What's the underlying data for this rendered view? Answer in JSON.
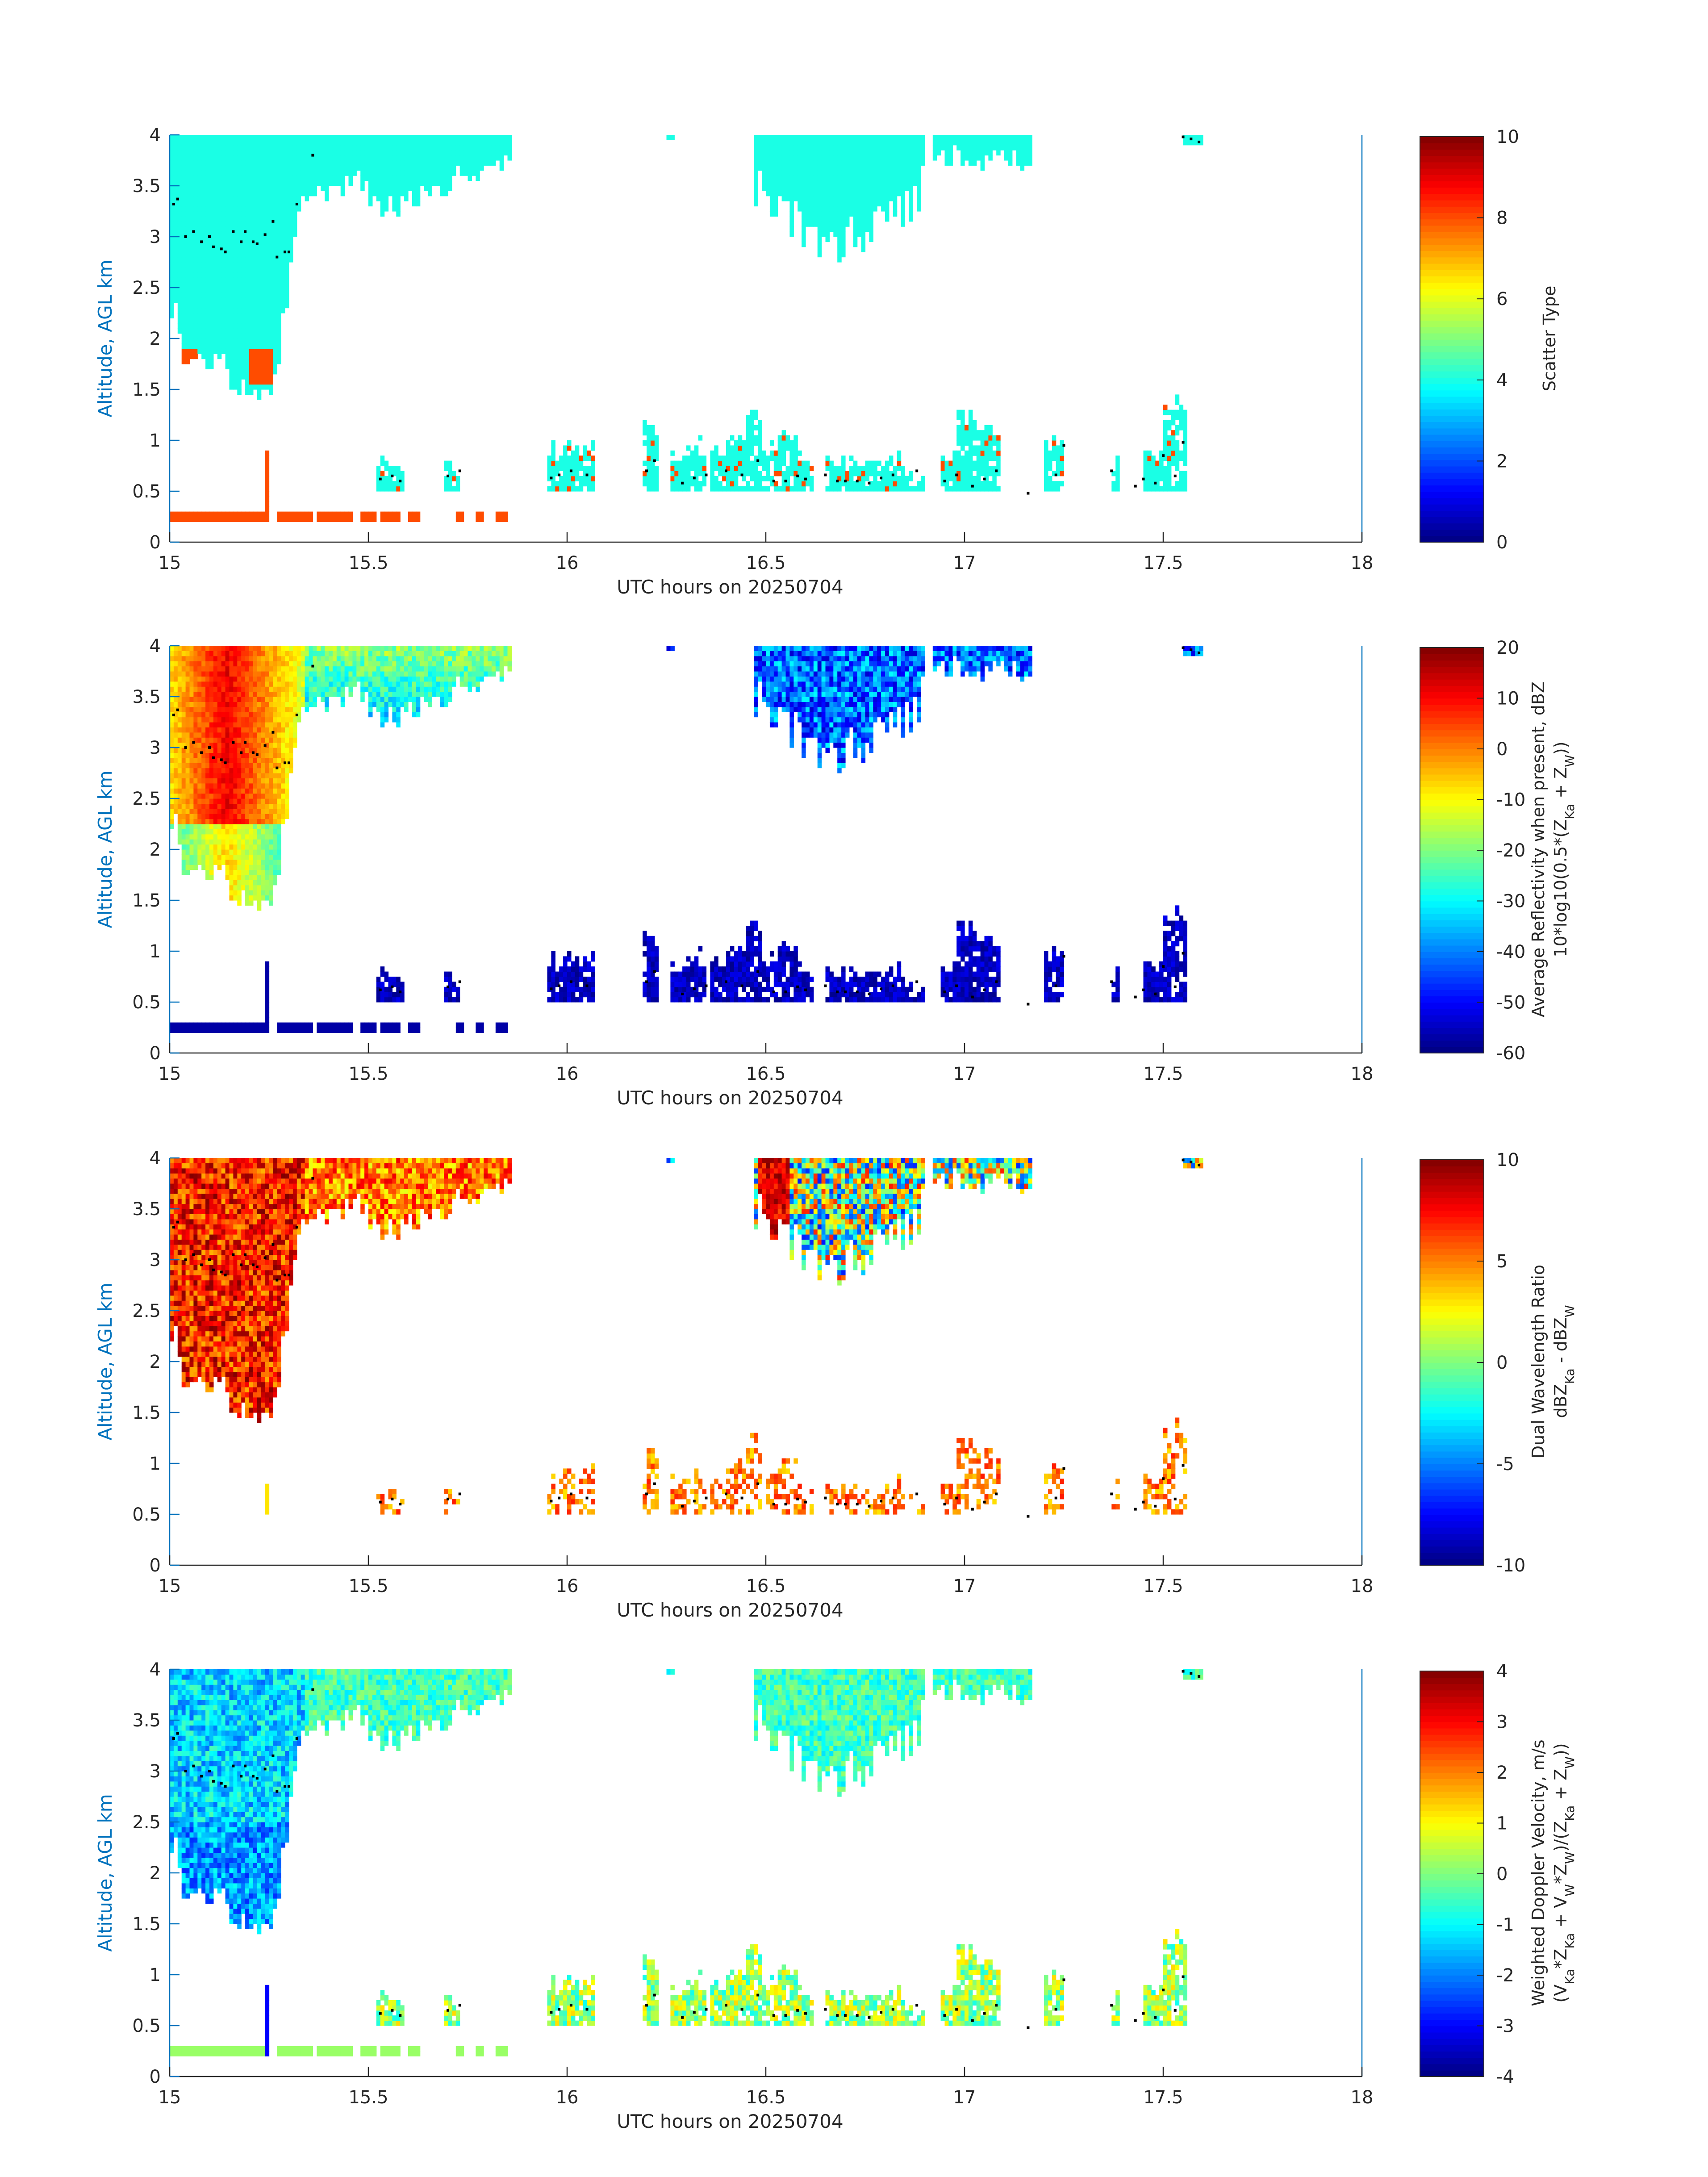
{
  "chart_data": [
    {
      "type": "heatmap",
      "xlabel": "UTC hours on 20250704",
      "ylabel": "Altitude, AGL km",
      "xlim": [
        15,
        18
      ],
      "ylim": [
        0,
        4
      ],
      "x_ticks": [
        "15",
        "15.5",
        "16",
        "16.5",
        "17",
        "17.5",
        "18"
      ],
      "y_ticks": [
        "0",
        "0.5",
        "1",
        "1.5",
        "2",
        "2.5",
        "3",
        "3.5",
        "4"
      ],
      "colorbar": {
        "label_lines": [
          "Scatter Type"
        ],
        "range": [
          0,
          10
        ],
        "ticks": [
          "0",
          "2",
          "4",
          "6",
          "8",
          "10"
        ]
      },
      "field": "scatter",
      "colormap": "jet"
    },
    {
      "type": "heatmap",
      "xlabel": "UTC hours on 20250704",
      "ylabel": "Altitude, AGL km",
      "xlim": [
        15,
        18
      ],
      "ylim": [
        0,
        4
      ],
      "x_ticks": [
        "15",
        "15.5",
        "16",
        "16.5",
        "17",
        "17.5",
        "18"
      ],
      "y_ticks": [
        "0",
        "0.5",
        "1",
        "1.5",
        "2",
        "2.5",
        "3",
        "3.5",
        "4"
      ],
      "colorbar": {
        "label_lines": [
          "Average Reflectivity when present, dBZ",
          "10*log10(0.5*(Z_Ka + Z_W))"
        ],
        "range": [
          -60,
          20
        ],
        "ticks": [
          "-60",
          "-50",
          "-40",
          "-30",
          "-20",
          "-10",
          "0",
          "10",
          "20"
        ]
      },
      "field": "reflectivity",
      "colormap": "jet"
    },
    {
      "type": "heatmap",
      "xlabel": "UTC hours on 20250704",
      "ylabel": "Altitude, AGL km",
      "xlim": [
        15,
        18
      ],
      "ylim": [
        0,
        4
      ],
      "x_ticks": [
        "15",
        "15.5",
        "16",
        "16.5",
        "17",
        "17.5",
        "18"
      ],
      "y_ticks": [
        "0",
        "0.5",
        "1",
        "1.5",
        "2",
        "2.5",
        "3",
        "3.5",
        "4"
      ],
      "colorbar": {
        "label_lines": [
          "Dual Wavelength Ratio",
          "dBZ_Ka - dBZ_W"
        ],
        "range": [
          -10,
          10
        ],
        "ticks": [
          "-10",
          "-5",
          "0",
          "5",
          "10"
        ]
      },
      "field": "dwr",
      "colormap": "jet"
    },
    {
      "type": "heatmap",
      "xlabel": "UTC hours on 20250704",
      "ylabel": "Altitude, AGL km",
      "xlim": [
        15,
        18
      ],
      "ylim": [
        0,
        4
      ],
      "x_ticks": [
        "15",
        "15.5",
        "16",
        "16.5",
        "17",
        "17.5",
        "18"
      ],
      "y_ticks": [
        "0",
        "0.5",
        "1",
        "1.5",
        "2",
        "2.5",
        "3",
        "3.5",
        "4"
      ],
      "colorbar": {
        "label_lines": [
          "Weighted Doppler Velocity, m/s",
          "(V_Ka*Z_Ka + V_W*Z_W)/(Z_Ka + Z_W))"
        ],
        "range": [
          -4,
          4
        ],
        "ticks": [
          "-4",
          "-3",
          "-2",
          "-1",
          "0",
          "1",
          "2",
          "3",
          "4"
        ]
      },
      "field": "velocity",
      "colormap": "jet"
    }
  ],
  "cloud_base_points": [
    [
      15.01,
      3.32
    ],
    [
      15.02,
      3.37
    ],
    [
      15.04,
      3.0
    ],
    [
      15.06,
      3.05
    ],
    [
      15.08,
      2.95
    ],
    [
      15.1,
      3.0
    ],
    [
      15.11,
      2.9
    ],
    [
      15.13,
      2.88
    ],
    [
      15.14,
      2.85
    ],
    [
      15.16,
      3.05
    ],
    [
      15.18,
      2.95
    ],
    [
      15.19,
      3.05
    ],
    [
      15.21,
      2.95
    ],
    [
      15.22,
      2.93
    ],
    [
      15.24,
      3.02
    ],
    [
      15.26,
      3.15
    ],
    [
      15.27,
      2.8
    ],
    [
      15.29,
      2.85
    ],
    [
      15.3,
      2.85
    ],
    [
      15.32,
      3.32
    ],
    [
      15.36,
      3.8
    ],
    [
      15.53,
      0.62
    ],
    [
      15.56,
      0.65
    ],
    [
      15.58,
      0.6
    ],
    [
      15.7,
      0.65
    ],
    [
      15.73,
      0.7
    ],
    [
      15.96,
      0.63
    ],
    [
      15.98,
      0.66
    ],
    [
      16.01,
      0.7
    ],
    [
      16.05,
      0.66
    ],
    [
      16.2,
      0.7
    ],
    [
      16.22,
      0.8
    ],
    [
      16.29,
      0.58
    ],
    [
      16.32,
      0.63
    ],
    [
      16.35,
      0.66
    ],
    [
      16.4,
      0.7
    ],
    [
      16.44,
      0.66
    ],
    [
      16.48,
      0.8
    ],
    [
      16.52,
      0.6
    ],
    [
      16.55,
      0.6
    ],
    [
      16.58,
      0.65
    ],
    [
      16.6,
      0.62
    ],
    [
      16.65,
      0.66
    ],
    [
      16.68,
      0.6
    ],
    [
      16.7,
      0.6
    ],
    [
      16.73,
      0.6
    ],
    [
      16.76,
      0.58
    ],
    [
      16.79,
      0.63
    ],
    [
      16.82,
      0.66
    ],
    [
      16.88,
      0.7
    ],
    [
      16.95,
      0.6
    ],
    [
      16.98,
      0.66
    ],
    [
      17.02,
      0.55
    ],
    [
      17.05,
      0.62
    ],
    [
      17.08,
      0.7
    ],
    [
      17.16,
      0.48
    ],
    [
      17.23,
      0.66
    ],
    [
      17.25,
      0.95
    ],
    [
      17.37,
      0.7
    ],
    [
      17.43,
      0.55
    ],
    [
      17.45,
      0.62
    ],
    [
      17.48,
      0.58
    ],
    [
      17.5,
      0.85
    ],
    [
      17.53,
      0.65
    ],
    [
      17.55,
      0.98
    ],
    [
      17.55,
      3.98
    ],
    [
      17.57,
      3.96
    ],
    [
      17.59,
      3.93
    ]
  ]
}
